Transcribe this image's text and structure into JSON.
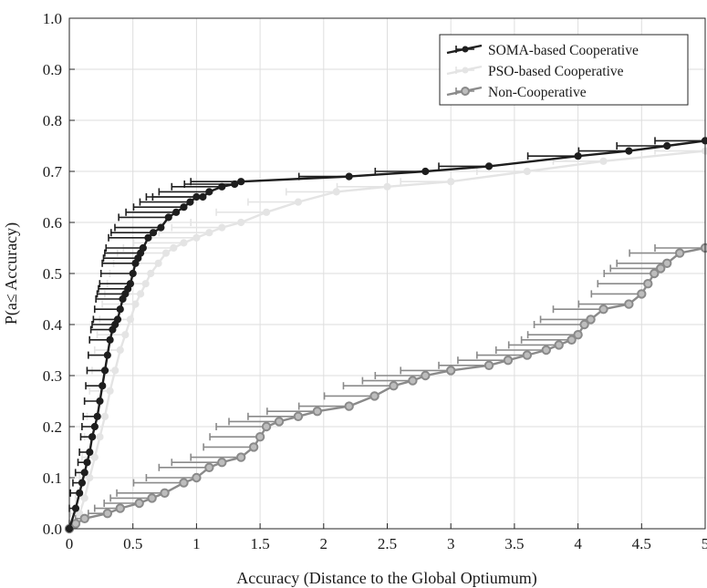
{
  "chart_data": {
    "type": "line",
    "title": "",
    "xlabel": "Accuracy (Distance to the Global Optiumum)",
    "ylabel": "P(a≤ Accuracy)",
    "xlim": [
      0,
      5
    ],
    "ylim": [
      0,
      1
    ],
    "grid": true,
    "legend_position": "top-right",
    "x_tick_labels": [
      "0",
      "0.5",
      "1",
      "1.5",
      "2",
      "2.5",
      "3",
      "3.5",
      "4",
      "4.5",
      "5"
    ],
    "y_tick_labels": [
      "0.0",
      "0.1",
      "0.2",
      "0.3",
      "0.4",
      "0.5",
      "0.6",
      "0.7",
      "0.8",
      "0.9",
      "1.0"
    ],
    "series": [
      {
        "name": "SOMA-based Cooperative",
        "color": "#1e1e1e",
        "x": [
          0.0,
          0.05,
          0.08,
          0.1,
          0.12,
          0.14,
          0.16,
          0.18,
          0.2,
          0.22,
          0.24,
          0.26,
          0.28,
          0.3,
          0.32,
          0.34,
          0.36,
          0.38,
          0.4,
          0.42,
          0.44,
          0.46,
          0.48,
          0.5,
          0.52,
          0.54,
          0.56,
          0.58,
          0.62,
          0.66,
          0.72,
          0.78,
          0.84,
          0.9,
          0.95,
          1.0,
          1.05,
          1.1,
          1.2,
          1.3,
          1.35,
          2.2,
          2.8,
          3.3,
          4.0,
          4.4,
          4.7,
          5.0
        ],
        "y": [
          0.0,
          0.04,
          0.07,
          0.09,
          0.11,
          0.13,
          0.15,
          0.18,
          0.2,
          0.22,
          0.25,
          0.28,
          0.31,
          0.34,
          0.37,
          0.39,
          0.4,
          0.41,
          0.43,
          0.45,
          0.46,
          0.47,
          0.48,
          0.5,
          0.52,
          0.53,
          0.54,
          0.55,
          0.57,
          0.58,
          0.59,
          0.61,
          0.62,
          0.63,
          0.64,
          0.65,
          0.65,
          0.66,
          0.67,
          0.675,
          0.68,
          0.69,
          0.7,
          0.71,
          0.73,
          0.74,
          0.75,
          0.76
        ]
      },
      {
        "name": "PSO-based Cooperative",
        "color": "#e4e4e4",
        "x": [
          0.0,
          0.08,
          0.12,
          0.16,
          0.2,
          0.24,
          0.28,
          0.32,
          0.36,
          0.4,
          0.44,
          0.48,
          0.52,
          0.56,
          0.6,
          0.64,
          0.7,
          0.76,
          0.82,
          0.9,
          1.0,
          1.1,
          1.2,
          1.35,
          1.55,
          1.8,
          2.1,
          2.5,
          3.0,
          3.6,
          4.2,
          5.0
        ],
        "y": [
          0.0,
          0.03,
          0.06,
          0.1,
          0.14,
          0.18,
          0.22,
          0.27,
          0.31,
          0.35,
          0.38,
          0.41,
          0.44,
          0.46,
          0.48,
          0.5,
          0.52,
          0.54,
          0.55,
          0.56,
          0.57,
          0.58,
          0.59,
          0.6,
          0.62,
          0.64,
          0.66,
          0.67,
          0.68,
          0.7,
          0.72,
          0.74
        ]
      },
      {
        "name": "Non-Cooperative",
        "color": "#8a8a8a",
        "x": [
          0.0,
          0.05,
          0.12,
          0.3,
          0.4,
          0.55,
          0.65,
          0.75,
          0.9,
          1.0,
          1.1,
          1.2,
          1.35,
          1.45,
          1.5,
          1.55,
          1.65,
          1.8,
          1.95,
          2.2,
          2.4,
          2.55,
          2.7,
          2.8,
          3.0,
          3.3,
          3.45,
          3.6,
          3.75,
          3.85,
          3.95,
          4.0,
          4.05,
          4.1,
          4.2,
          4.4,
          4.5,
          4.55,
          4.6,
          4.65,
          4.7,
          4.8,
          5.0
        ],
        "y": [
          0.0,
          0.01,
          0.02,
          0.03,
          0.04,
          0.05,
          0.06,
          0.07,
          0.09,
          0.1,
          0.12,
          0.13,
          0.14,
          0.16,
          0.18,
          0.2,
          0.21,
          0.22,
          0.23,
          0.24,
          0.26,
          0.28,
          0.29,
          0.3,
          0.31,
          0.32,
          0.33,
          0.34,
          0.35,
          0.36,
          0.37,
          0.38,
          0.4,
          0.41,
          0.43,
          0.44,
          0.46,
          0.48,
          0.5,
          0.51,
          0.52,
          0.54,
          0.55
        ]
      }
    ]
  }
}
